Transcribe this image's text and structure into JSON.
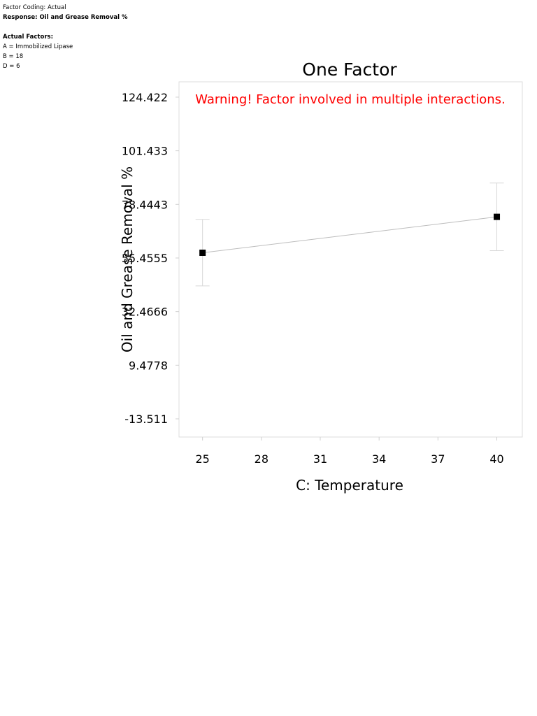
{
  "info": {
    "factor_coding": "Factor Coding: Actual",
    "response": "Response: Oil and Grease Removal %",
    "actual_factors_heading": "Actual Factors:",
    "factors": [
      "A = Immobilized Lipase",
      "B = 18",
      "D = 6"
    ]
  },
  "chart_data": {
    "type": "line",
    "title": "One Factor",
    "warning": "Warning! Factor involved in multiple interactions.",
    "xlabel": "C: Temperature",
    "ylabel": "Oil and Grease Removal %",
    "xlim": [
      23.8,
      41.3
    ],
    "ylim": [
      -21.3,
      131.0
    ],
    "x_ticks": [
      25,
      28,
      31,
      34,
      37,
      40
    ],
    "y_ticks": [
      124.422,
      101.433,
      78.4443,
      55.4555,
      32.4666,
      9.4778,
      -13.511
    ],
    "y_tick_labels": [
      "124.422",
      "101.433",
      "78.4443",
      "55.4555",
      "32.4666",
      "9.4778",
      "-13.511"
    ],
    "series": [
      {
        "x": [
          25,
          40
        ],
        "y": [
          57.7,
          73.1
        ],
        "ci_low": [
          43.5,
          58.6
        ],
        "ci_high": [
          72.0,
          87.6
        ]
      }
    ],
    "colors": {
      "warning": "#ff0000",
      "line": "#bdbdbd",
      "marker": "#000000",
      "errorbar": "#d8d8d8",
      "axis": "#d0d0d0"
    }
  }
}
